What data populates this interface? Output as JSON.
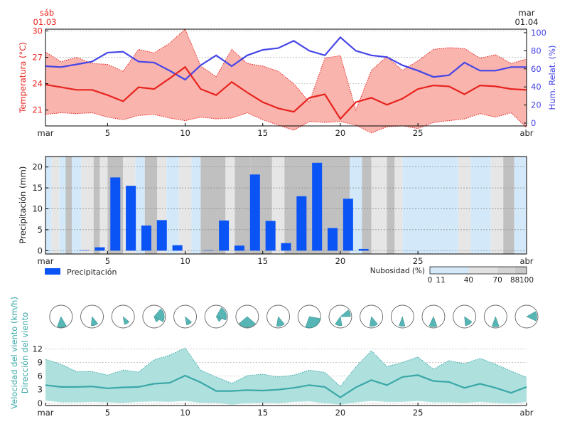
{
  "header": {
    "left_day": "sáb",
    "left_date": "01.03",
    "right_day": "mar",
    "right_date": "01.04"
  },
  "x_ticks": [
    {
      "day": 1,
      "label": "mar"
    },
    {
      "day": 5,
      "label": "5"
    },
    {
      "day": 10,
      "label": "10"
    },
    {
      "day": 15,
      "label": "15"
    },
    {
      "day": 20,
      "label": "20"
    },
    {
      "day": 25,
      "label": "25"
    },
    {
      "day": 32,
      "label": "abr"
    }
  ],
  "colors": {
    "temp": "#e8231e",
    "temp_fill": "#f9b4ae",
    "humidity": "#4545e6",
    "precip": "#0a53f5",
    "wind": "#3aa8a8",
    "wind_fill": "#aee0de",
    "cloud_low": "#d3e8f8",
    "cloud_mid": "#e6e6e6",
    "cloud_high": "#c0c0c0"
  },
  "chart_data": [
    {
      "type": "line",
      "x_unit": "day of March",
      "ylabel_left": "Temperatura (°C)",
      "ylabel_right": "Hum. Relat. (%)",
      "ylim_left": [
        19.2,
        30.2
      ],
      "ylim_right": [
        0,
        100
      ],
      "yticks_left": [
        21,
        24,
        27,
        30
      ],
      "yticks_right": [
        0,
        20,
        40,
        60,
        80,
        100
      ],
      "x": [
        1,
        2,
        3,
        4,
        5,
        6,
        7,
        8,
        9,
        10,
        11,
        12,
        13,
        14,
        15,
        16,
        17,
        18,
        19,
        20,
        21,
        22,
        23,
        24,
        25,
        26,
        27,
        28,
        29,
        30,
        31,
        32
      ],
      "series": [
        {
          "name": "temp_mean",
          "values": [
            23.9,
            23.6,
            23.3,
            23.3,
            22.7,
            22.0,
            23.6,
            23.4,
            24.6,
            25.9,
            23.4,
            22.7,
            24.2,
            23.0,
            21.9,
            21.2,
            20.8,
            22.4,
            22.8,
            20.0,
            21.9,
            22.4,
            21.6,
            22.3,
            23.4,
            23.8,
            23.7,
            22.8,
            23.8,
            23.7,
            23.4,
            23.3
          ]
        },
        {
          "name": "temp_max",
          "values": [
            27.6,
            26.5,
            27.0,
            26.3,
            26.2,
            25.4,
            27.9,
            27.5,
            28.6,
            30.2,
            26.0,
            24.8,
            27.9,
            26.3,
            26.0,
            25.4,
            24.0,
            21.9,
            26.9,
            27.2,
            21.0,
            25.5,
            27.1,
            25.5,
            26.6,
            27.9,
            28.1,
            28.0,
            26.9,
            27.3,
            26.3,
            26.8
          ]
        },
        {
          "name": "temp_min",
          "values": [
            20.5,
            20.7,
            20.6,
            20.7,
            20.2,
            19.9,
            20.4,
            20.5,
            20.1,
            19.8,
            20.2,
            20.0,
            20.1,
            20.7,
            19.9,
            19.3,
            18.7,
            19.7,
            19.6,
            19.7,
            19.3,
            18.4,
            19.1,
            19.2,
            18.9,
            19.6,
            19.8,
            20.0,
            20.6,
            20.2,
            20.7,
            19.0
          ]
        },
        {
          "name": "humidity",
          "values": [
            63,
            62,
            65,
            68,
            78,
            79,
            68,
            67,
            58,
            48,
            64,
            75,
            63,
            75,
            81,
            83,
            91,
            80,
            75,
            95,
            80,
            75,
            73,
            64,
            58,
            51,
            53,
            67,
            58,
            58,
            62,
            62
          ]
        }
      ]
    },
    {
      "type": "bar",
      "x_unit": "day of March",
      "ylabel": "Precipitación (mm)",
      "ylim": [
        -0.8,
        22.5
      ],
      "yticks": [
        0,
        5,
        10,
        15,
        20
      ],
      "legend": "Precipitación",
      "x": [
        1,
        2,
        3,
        4,
        5,
        6,
        7,
        8,
        9,
        10,
        11,
        12,
        13,
        14,
        15,
        16,
        17,
        18,
        19,
        20,
        21,
        22,
        23,
        24,
        25,
        26,
        27,
        28,
        29,
        30,
        31
      ],
      "values": [
        0,
        0,
        0.1,
        0.8,
        17.5,
        15.5,
        6.0,
        7.3,
        1.3,
        0,
        0.1,
        7.2,
        1.2,
        18.2,
        7.1,
        1.8,
        13.0,
        21.0,
        5.4,
        12.4,
        0.4,
        0,
        0,
        0,
        0,
        0,
        0,
        0,
        0,
        0,
        0
      ],
      "cloud_legend": {
        "title": "Nubosidad (%)",
        "ticks": [
          "0",
          "11",
          "40",
          "70",
          "88",
          "100"
        ]
      },
      "cloud_segments": [
        {
          "start": 1.0,
          "end": 1.4,
          "level": "low"
        },
        {
          "start": 1.4,
          "end": 1.9,
          "level": "mid"
        },
        {
          "start": 1.9,
          "end": 2.3,
          "level": "low"
        },
        {
          "start": 2.3,
          "end": 2.7,
          "level": "high"
        },
        {
          "start": 2.7,
          "end": 3.3,
          "level": "low"
        },
        {
          "start": 3.3,
          "end": 4.1,
          "level": "mid"
        },
        {
          "start": 4.1,
          "end": 4.5,
          "level": "high"
        },
        {
          "start": 4.5,
          "end": 5.0,
          "level": "mid"
        },
        {
          "start": 5.0,
          "end": 6.0,
          "level": "high"
        },
        {
          "start": 6.0,
          "end": 6.8,
          "level": "mid"
        },
        {
          "start": 6.8,
          "end": 7.4,
          "level": "low"
        },
        {
          "start": 7.4,
          "end": 8.2,
          "level": "high"
        },
        {
          "start": 8.2,
          "end": 8.8,
          "level": "mid"
        },
        {
          "start": 8.8,
          "end": 9.6,
          "level": "low"
        },
        {
          "start": 9.6,
          "end": 10.4,
          "level": "mid"
        },
        {
          "start": 10.4,
          "end": 11.0,
          "level": "low"
        },
        {
          "start": 11.0,
          "end": 12.6,
          "level": "high"
        },
        {
          "start": 12.6,
          "end": 13.2,
          "level": "mid"
        },
        {
          "start": 13.2,
          "end": 14.2,
          "level": "high"
        },
        {
          "start": 14.2,
          "end": 15.6,
          "level": "high"
        },
        {
          "start": 15.6,
          "end": 16.4,
          "level": "mid"
        },
        {
          "start": 16.4,
          "end": 19.8,
          "level": "high"
        },
        {
          "start": 19.8,
          "end": 20.6,
          "level": "high"
        },
        {
          "start": 20.6,
          "end": 21.4,
          "level": "low"
        },
        {
          "start": 21.4,
          "end": 22.0,
          "level": "high"
        },
        {
          "start": 22.0,
          "end": 23.0,
          "level": "mid"
        },
        {
          "start": 23.0,
          "end": 23.5,
          "level": "high"
        },
        {
          "start": 23.5,
          "end": 24.0,
          "level": "mid"
        },
        {
          "start": 24.0,
          "end": 27.6,
          "level": "low"
        },
        {
          "start": 27.6,
          "end": 28.4,
          "level": "mid"
        },
        {
          "start": 28.4,
          "end": 29.7,
          "level": "low"
        },
        {
          "start": 29.7,
          "end": 30.5,
          "level": "mid"
        },
        {
          "start": 30.5,
          "end": 31.2,
          "level": "high"
        },
        {
          "start": 31.2,
          "end": 32.0,
          "level": "low"
        }
      ]
    },
    {
      "type": "area",
      "x_unit": "day of March",
      "ylabel": "Velocidad del viento (km/h)",
      "ylabel2": "Dirección del viento",
      "ylim": [
        -0.5,
        13.0
      ],
      "yticks": [
        0,
        3,
        6,
        9,
        12
      ],
      "x": [
        1,
        2,
        3,
        4,
        5,
        6,
        7,
        8,
        9,
        10,
        11,
        12,
        13,
        14,
        15,
        16,
        17,
        18,
        19,
        20,
        21,
        22,
        23,
        24,
        25,
        26,
        27,
        28,
        29,
        30,
        31,
        32
      ],
      "series": [
        {
          "name": "wind_mean",
          "values": [
            4.0,
            3.6,
            3.6,
            3.7,
            3.3,
            3.5,
            3.6,
            4.3,
            4.5,
            6.1,
            4.6,
            2.7,
            2.7,
            2.9,
            2.8,
            3.0,
            3.4,
            4.0,
            3.6,
            1.3,
            3.5,
            5.1,
            4.0,
            5.8,
            6.2,
            4.9,
            4.7,
            3.4,
            4.3,
            3.4,
            2.3,
            3.6
          ]
        },
        {
          "name": "wind_max",
          "values": [
            9.7,
            8.6,
            7.0,
            7.0,
            6.2,
            7.3,
            6.9,
            9.6,
            10.6,
            12.2,
            7.3,
            5.8,
            4.4,
            6.1,
            6.4,
            5.8,
            6.2,
            7.3,
            6.8,
            3.7,
            8.0,
            11.6,
            8.1,
            9.0,
            10.2,
            7.5,
            9.4,
            8.7,
            9.9,
            8.6,
            7.1,
            5.7
          ]
        },
        {
          "name": "wind_min",
          "values": [
            0.6,
            0.2,
            0.2,
            0.3,
            0.2,
            0.1,
            0.3,
            0.4,
            0.3,
            0.5,
            0.1,
            0.1,
            -0.3,
            0.0,
            0.1,
            0.0,
            0.3,
            0.4,
            0.0,
            -0.3,
            0.2,
            0.5,
            0.3,
            0.3,
            0.5,
            0.2,
            0.2,
            0.1,
            0.3,
            0.1,
            -0.1,
            0.3
          ]
        }
      ],
      "wind_roses": [
        {
          "day": 2,
          "wedges": [
            [
              150,
              200,
              0.95
            ]
          ]
        },
        {
          "day": 4,
          "wedges": [
            [
              140,
              185,
              0.8
            ]
          ]
        },
        {
          "day": 6,
          "wedges": [
            [
              130,
              170,
              0.7
            ]
          ]
        },
        {
          "day": 8,
          "wedges": [
            [
              40,
              120,
              0.9
            ],
            [
              120,
              160,
              0.5
            ]
          ]
        },
        {
          "day": 10,
          "wedges": [
            [
              130,
              170,
              0.75
            ]
          ]
        },
        {
          "day": 12,
          "wedges": [
            [
              30,
              110,
              0.9
            ],
            [
              110,
              150,
              0.5
            ]
          ]
        },
        {
          "day": 14,
          "wedges": [
            [
              130,
              230,
              0.95
            ]
          ]
        },
        {
          "day": 16,
          "wedges": [
            [
              140,
              190,
              0.85
            ]
          ]
        },
        {
          "day": 18,
          "wedges": [
            [
              100,
              200,
              1.0
            ]
          ]
        },
        {
          "day": 20,
          "wedges": [
            [
              50,
              90,
              0.9
            ],
            [
              170,
              215,
              0.8
            ]
          ]
        },
        {
          "day": 22,
          "wedges": [
            [
              140,
              190,
              0.85
            ]
          ]
        },
        {
          "day": 24,
          "wedges": [
            [
              165,
              200,
              0.85
            ]
          ]
        },
        {
          "day": 26,
          "wedges": [
            [
              160,
              205,
              0.9
            ]
          ]
        },
        {
          "day": 28,
          "wedges": [
            [
              125,
              175,
              0.8
            ]
          ]
        },
        {
          "day": 30,
          "wedges": [
            [
              160,
              200,
              0.9
            ]
          ]
        },
        {
          "day": 32,
          "wedges": [
            [
              60,
              115,
              0.9
            ]
          ]
        }
      ]
    }
  ]
}
